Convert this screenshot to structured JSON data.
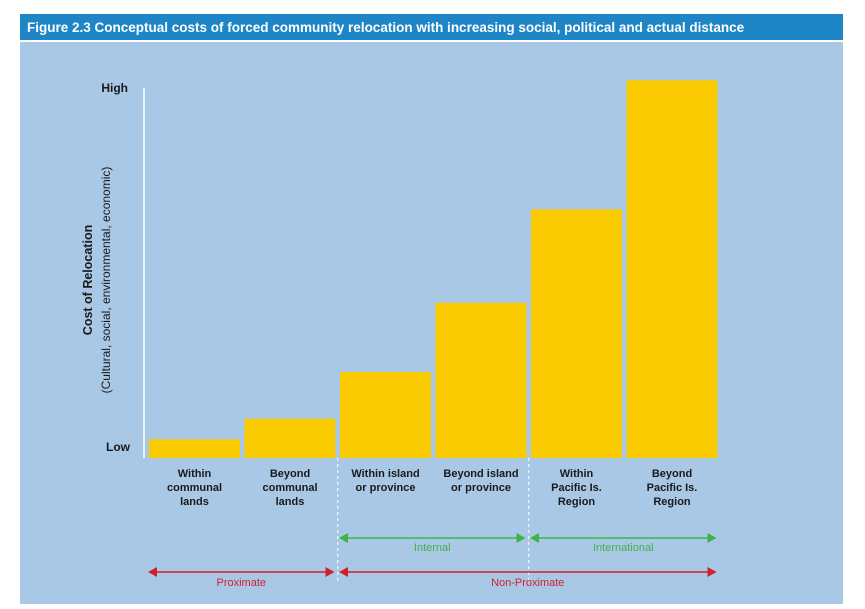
{
  "figure": {
    "title": "Figure 2.3 Conceptual costs of forced community relocation with increasing social, political and actual distance"
  },
  "chart_data": {
    "type": "bar",
    "title": "Figure 2.3 Conceptual costs of forced community relocation with increasing social, political and actual distance",
    "ylabel": "Cost of Relocation",
    "ylabel_sub": "(Cultural, social, environmental, economic)",
    "y_tick_labels": {
      "high": "High",
      "low": "Low"
    },
    "ylim": [
      0,
      100
    ],
    "categories": [
      [
        "Within",
        "communal",
        "lands"
      ],
      [
        "Beyond",
        "communal",
        "lands"
      ],
      [
        "Within island",
        "or province"
      ],
      [
        "Beyond island",
        "or province"
      ],
      [
        "Within",
        "Pacific Is.",
        "Region"
      ],
      [
        "Beyond",
        "Pacific Is.",
        "Region"
      ]
    ],
    "values": [
      5,
      10.5,
      23,
      41.5,
      66.5,
      101
    ],
    "bar_color": "#facb00",
    "groups": [
      {
        "label": "Internal",
        "from": 2,
        "to": 3,
        "color": "#3fb24a",
        "level": 1
      },
      {
        "label": "International",
        "from": 4,
        "to": 5,
        "color": "#3fb24a",
        "level": 1
      },
      {
        "label": "Proximate",
        "from": 0,
        "to": 1,
        "color": "#d0202e",
        "level": 2
      },
      {
        "label": "Non-Proximate",
        "from": 2,
        "to": 5,
        "color": "#d0202e",
        "level": 2
      }
    ]
  }
}
